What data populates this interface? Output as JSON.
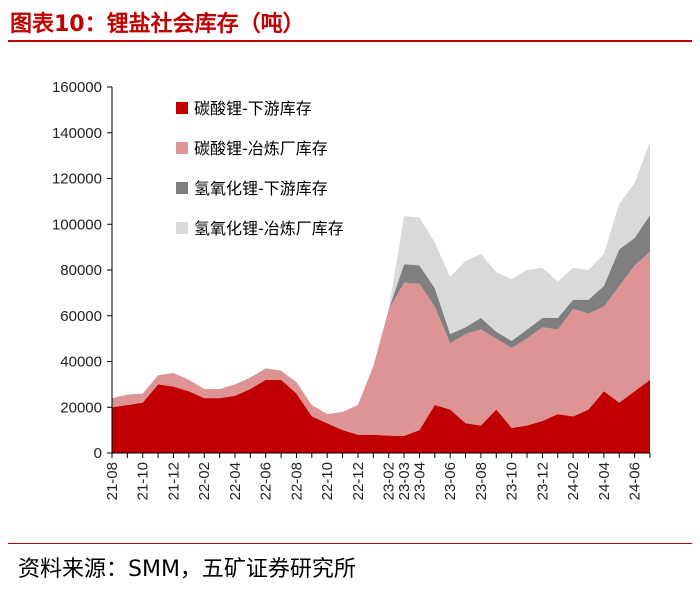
{
  "header": {
    "title": "图表10：锂盐社会库存（吨）"
  },
  "footer": {
    "source": "资料来源：SMM，五矿证券研究所"
  },
  "chart_data": {
    "type": "area",
    "stacked": true,
    "title": "图表10：锂盐社会库存（吨）",
    "xlabel": "",
    "ylabel": "",
    "ylim": [
      0,
      160000
    ],
    "yticks": [
      "0",
      "20000",
      "40000",
      "60000",
      "80000",
      "100000",
      "120000",
      "140000",
      "160000"
    ],
    "x": [
      "21-08",
      "21-09",
      "21-10",
      "21-11",
      "21-12",
      "22-01",
      "22-02",
      "22-03",
      "22-04",
      "22-05",
      "22-06",
      "22-07",
      "22-08",
      "22-09",
      "22-10",
      "22-11",
      "22-12",
      "23-01",
      "23-02",
      "23-03",
      "23-04",
      "23-05",
      "23-06",
      "23-07",
      "23-08",
      "23-09",
      "23-10",
      "23-11",
      "23-12",
      "24-01",
      "24-02",
      "24-03",
      "24-04",
      "24-05",
      "24-06",
      "24-07"
    ],
    "x_tick_labels": [
      "21-08",
      "21-10",
      "21-12",
      "22-02",
      "22-04",
      "22-06",
      "22-08",
      "22-10",
      "22-12",
      "23-02",
      "23-03",
      "23-04",
      "23-06",
      "23-08",
      "23-10",
      "23-12",
      "24-02",
      "24-04",
      "24-06"
    ],
    "legend": [
      "碳酸锂-下游库存",
      "碳酸锂-冶炼厂库存",
      "氢氧化锂-下游库存",
      "氢氧化锂-冶炼厂库存"
    ],
    "legend_position": "top-left",
    "series": [
      {
        "name": "碳酸锂-下游库存",
        "color": "#c00000",
        "values": [
          20000,
          21000,
          22000,
          30000,
          29000,
          27000,
          24000,
          24000,
          25000,
          28000,
          32000,
          32000,
          26000,
          16000,
          13000,
          10000,
          8000,
          8000,
          7600,
          7500,
          10000,
          21000,
          19000,
          13000,
          12000,
          19000,
          11000,
          12000,
          14000,
          17000,
          16000,
          19000,
          27000,
          22000,
          27000,
          32000
        ]
      },
      {
        "name": "碳酸锂-冶炼厂库存",
        "color": "#de9494",
        "values": [
          4000,
          4500,
          4000,
          4000,
          6000,
          5000,
          4000,
          4000,
          5000,
          5000,
          5000,
          4000,
          5000,
          5000,
          4000,
          8000,
          13000,
          30000,
          55000,
          67000,
          64000,
          43000,
          29000,
          39000,
          42000,
          31000,
          35000,
          38000,
          41000,
          37000,
          47000,
          42000,
          37000,
          51000,
          55000,
          56000
        ]
      },
      {
        "name": "氢氧化锂-下游库存",
        "color": "#7f7f7f",
        "values": [
          0,
          0,
          0,
          0,
          0,
          0,
          0,
          0,
          0,
          0,
          0,
          0,
          0,
          0,
          0,
          0,
          0,
          0,
          0,
          8000,
          8000,
          8000,
          4000,
          3000,
          5000,
          3000,
          3000,
          4000,
          4000,
          5000,
          4000,
          6000,
          9000,
          16000,
          12000,
          16000
        ]
      },
      {
        "name": "氢氧化锂-冶炼厂库存",
        "color": "#d9d9d9",
        "values": [
          0,
          0,
          0,
          0,
          0,
          0,
          0,
          0,
          0,
          0,
          0,
          0,
          0,
          0,
          0,
          0,
          0,
          0,
          0,
          21000,
          21000,
          20000,
          25000,
          29000,
          28000,
          26000,
          27000,
          26000,
          22000,
          16000,
          14000,
          13000,
          14000,
          20000,
          24000,
          32000
        ]
      }
    ]
  }
}
